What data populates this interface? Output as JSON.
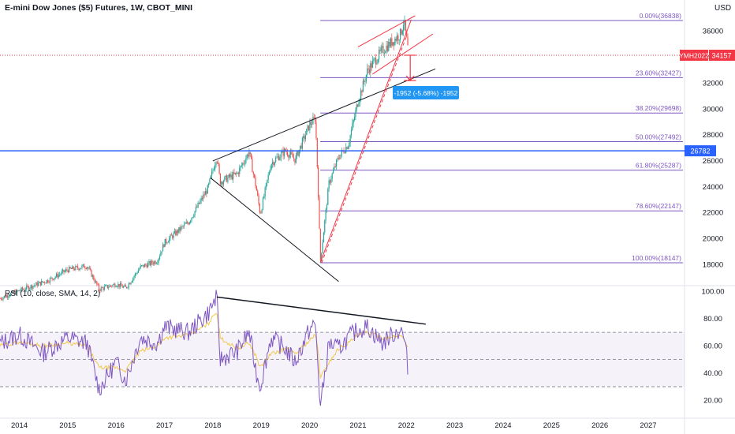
{
  "header": {
    "symbol_title": "E-mini Dow Jones ($5) Futures, 1W, CBOT_MINI",
    "currency": "USD"
  },
  "chart_data": [
    {
      "type": "candlestick",
      "title": "E-mini Dow Jones ($5) Futures, 1W, CBOT_MINI",
      "y_unit": "USD",
      "ylim": [
        16500,
        37200
      ],
      "y_ticks": [
        18000,
        20000,
        22000,
        24000,
        26000,
        28000,
        30000,
        32000,
        34000,
        36000
      ],
      "x_ticks": [
        "2014",
        "2015",
        "2016",
        "2017",
        "2018",
        "2019",
        "2020",
        "2021",
        "2022",
        "2023",
        "2024",
        "2025",
        "2026",
        "2027"
      ],
      "xlim": [
        2013.6,
        2027.75
      ],
      "price_path": [
        [
          2013.6,
          15400
        ],
        [
          2014.0,
          16000
        ],
        [
          2014.6,
          16800
        ],
        [
          2015.0,
          17600
        ],
        [
          2015.4,
          17900
        ],
        [
          2015.65,
          16100
        ],
        [
          2016.0,
          16500
        ],
        [
          2016.2,
          16200
        ],
        [
          2016.5,
          17800
        ],
        [
          2016.85,
          18300
        ],
        [
          2017.0,
          19700
        ],
        [
          2017.5,
          21300
        ],
        [
          2017.9,
          23900
        ],
        [
          2018.08,
          26400
        ],
        [
          2018.15,
          24400
        ],
        [
          2018.5,
          25000
        ],
        [
          2018.75,
          26700
        ],
        [
          2018.9,
          23800
        ],
        [
          2018.98,
          21900
        ],
        [
          2019.2,
          25800
        ],
        [
          2019.5,
          26800
        ],
        [
          2019.7,
          26100
        ],
        [
          2020.0,
          28800
        ],
        [
          2020.12,
          29300
        ],
        [
          2020.18,
          23500
        ],
        [
          2020.22,
          18200
        ],
        [
          2020.4,
          24300
        ],
        [
          2020.6,
          26300
        ],
        [
          2020.8,
          27300
        ],
        [
          2021.0,
          30600
        ],
        [
          2021.2,
          33000
        ],
        [
          2021.5,
          34500
        ],
        [
          2021.7,
          35200
        ],
        [
          2021.88,
          35800
        ],
        [
          2021.95,
          36800
        ],
        [
          2022.05,
          34157
        ]
      ],
      "last_price": 34157,
      "last_price_label": "34157",
      "contract_label": "YMH2022",
      "horizontal_level": 26782,
      "horizontal_level_label": "26782",
      "fib_levels": [
        {
          "label": "0.00%(36838)",
          "value": 36838
        },
        {
          "label": "23.60%(32427)",
          "value": 32427
        },
        {
          "label": "38.20%(29698)",
          "value": 29698
        },
        {
          "label": "50.00%(27492)",
          "value": 27492
        },
        {
          "label": "61.80%(25287)",
          "value": 25287
        },
        {
          "label": "78.60%(22147)",
          "value": 22147
        },
        {
          "label": "100.00%(18147)",
          "value": 18147
        }
      ],
      "measure_label": "-1952 (-5.68%) -1952",
      "colors": {
        "up": "#26a69a",
        "down": "#ef5350",
        "fib": "#7e57c2",
        "level": "#2962ff",
        "price": "#f23645",
        "measure": "#2196f3"
      }
    },
    {
      "type": "line",
      "title": "RSI (10, close, SMA, 14, 2)",
      "ylim": [
        8,
        102
      ],
      "y_ticks": [
        "100.00",
        "80.00",
        "60.00",
        "40.00",
        "20.00"
      ],
      "bands": [
        30,
        50,
        70
      ],
      "series": [
        {
          "name": "RSI",
          "color": "#7e57c2",
          "values": [
            [
              2013.6,
              62
            ],
            [
              2014.0,
              68
            ],
            [
              2014.5,
              55
            ],
            [
              2015.0,
              66
            ],
            [
              2015.4,
              62
            ],
            [
              2015.65,
              28
            ],
            [
              2016.0,
              48
            ],
            [
              2016.2,
              35
            ],
            [
              2016.5,
              66
            ],
            [
              2016.85,
              62
            ],
            [
              2017.0,
              74
            ],
            [
              2017.5,
              70
            ],
            [
              2017.9,
              84
            ],
            [
              2018.08,
              96
            ],
            [
              2018.15,
              50
            ],
            [
              2018.5,
              56
            ],
            [
              2018.75,
              70
            ],
            [
              2018.9,
              40
            ],
            [
              2018.98,
              30
            ],
            [
              2019.2,
              66
            ],
            [
              2019.5,
              58
            ],
            [
              2019.7,
              48
            ],
            [
              2020.0,
              72
            ],
            [
              2020.12,
              76
            ],
            [
              2020.18,
              42
            ],
            [
              2020.22,
              14
            ],
            [
              2020.4,
              62
            ],
            [
              2020.6,
              58
            ],
            [
              2020.8,
              66
            ],
            [
              2021.0,
              72
            ],
            [
              2021.2,
              74
            ],
            [
              2021.5,
              62
            ],
            [
              2021.7,
              68
            ],
            [
              2021.88,
              72
            ],
            [
              2021.95,
              66
            ],
            [
              2022.05,
              40
            ]
          ]
        },
        {
          "name": "SMA",
          "color": "#f2c94c",
          "values": [
            [
              2013.6,
              60
            ],
            [
              2014.0,
              63
            ],
            [
              2014.5,
              60
            ],
            [
              2015.0,
              62
            ],
            [
              2015.4,
              60
            ],
            [
              2015.65,
              44
            ],
            [
              2016.0,
              44
            ],
            [
              2016.2,
              42
            ],
            [
              2016.5,
              56
            ],
            [
              2016.85,
              60
            ],
            [
              2017.0,
              66
            ],
            [
              2017.5,
              68
            ],
            [
              2017.9,
              76
            ],
            [
              2018.08,
              86
            ],
            [
              2018.15,
              66
            ],
            [
              2018.5,
              58
            ],
            [
              2018.75,
              62
            ],
            [
              2018.9,
              52
            ],
            [
              2018.98,
              44
            ],
            [
              2019.2,
              54
            ],
            [
              2019.5,
              58
            ],
            [
              2019.7,
              54
            ],
            [
              2020.0,
              64
            ],
            [
              2020.12,
              68
            ],
            [
              2020.18,
              56
            ],
            [
              2020.22,
              36
            ],
            [
              2020.4,
              48
            ],
            [
              2020.6,
              58
            ],
            [
              2020.8,
              62
            ],
            [
              2021.0,
              68
            ],
            [
              2021.2,
              70
            ],
            [
              2021.5,
              66
            ],
            [
              2021.7,
              66
            ],
            [
              2021.88,
              68
            ],
            [
              2021.95,
              66
            ],
            [
              2022.05,
              56
            ]
          ]
        }
      ]
    }
  ]
}
